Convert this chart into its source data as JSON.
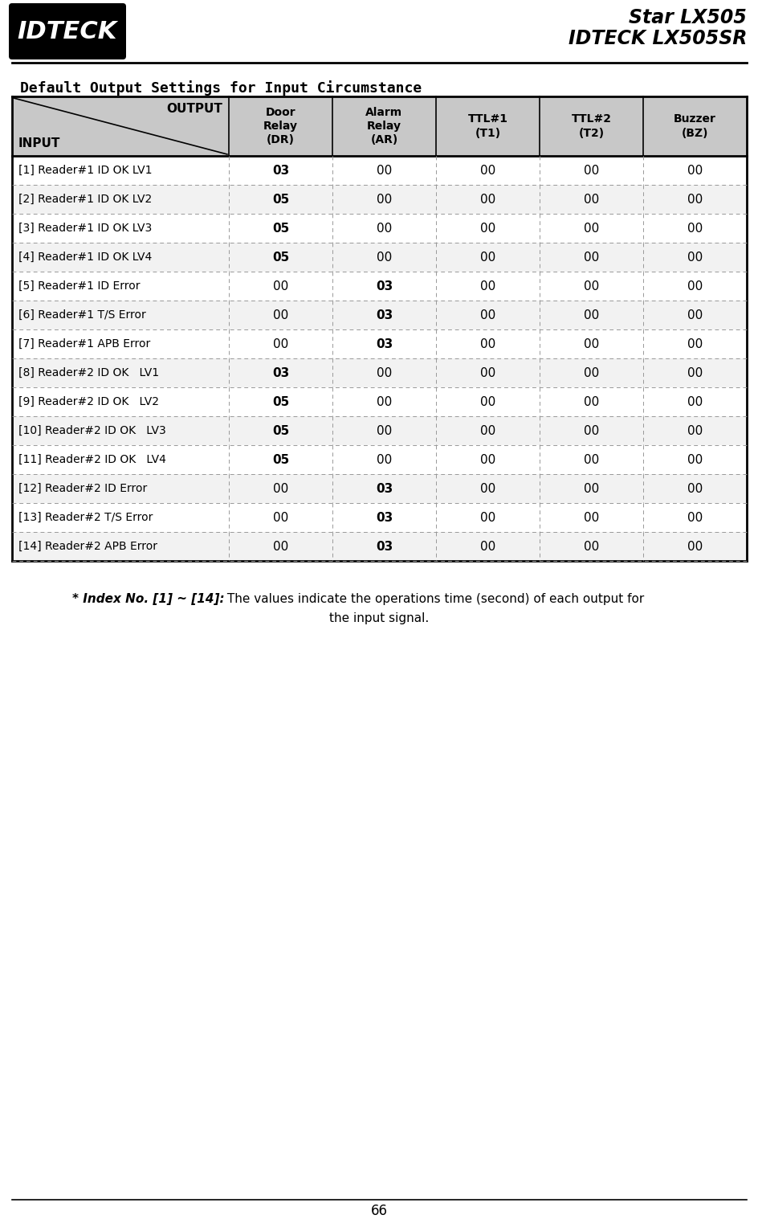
{
  "title": "Default Output Settings for Input Circumstance",
  "page_number": "66",
  "header_bg": "#c8c8c8",
  "row_bg_odd": "#ffffff",
  "row_bg_even": "#f2f2f2",
  "col_headers": [
    "Door\nRelay\n(DR)",
    "Alarm\nRelay\n(AR)",
    "TTL#1\n(T1)",
    "TTL#2\n(T2)",
    "Buzzer\n(BZ)"
  ],
  "rows": [
    {
      "label": "[1] Reader#1 ID OK LV1",
      "dr": "03",
      "ar": "00",
      "t1": "00",
      "t2": "00",
      "bz": "00",
      "dr_bold": true,
      "ar_bold": false
    },
    {
      "label": "[2] Reader#1 ID OK LV2",
      "dr": "05",
      "ar": "00",
      "t1": "00",
      "t2": "00",
      "bz": "00",
      "dr_bold": true,
      "ar_bold": false
    },
    {
      "label": "[3] Reader#1 ID OK LV3",
      "dr": "05",
      "ar": "00",
      "t1": "00",
      "t2": "00",
      "bz": "00",
      "dr_bold": true,
      "ar_bold": false
    },
    {
      "label": "[4] Reader#1 ID OK LV4",
      "dr": "05",
      "ar": "00",
      "t1": "00",
      "t2": "00",
      "bz": "00",
      "dr_bold": true,
      "ar_bold": false
    },
    {
      "label": "[5] Reader#1 ID Error",
      "dr": "00",
      "ar": "03",
      "t1": "00",
      "t2": "00",
      "bz": "00",
      "dr_bold": false,
      "ar_bold": true
    },
    {
      "label": "[6] Reader#1 T/S Error",
      "dr": "00",
      "ar": "03",
      "t1": "00",
      "t2": "00",
      "bz": "00",
      "dr_bold": false,
      "ar_bold": true
    },
    {
      "label": "[7] Reader#1 APB Error",
      "dr": "00",
      "ar": "03",
      "t1": "00",
      "t2": "00",
      "bz": "00",
      "dr_bold": false,
      "ar_bold": true
    },
    {
      "label": "[8] Reader#2 ID OK   LV1",
      "dr": "03",
      "ar": "00",
      "t1": "00",
      "t2": "00",
      "bz": "00",
      "dr_bold": true,
      "ar_bold": false
    },
    {
      "label": "[9] Reader#2 ID OK   LV2",
      "dr": "05",
      "ar": "00",
      "t1": "00",
      "t2": "00",
      "bz": "00",
      "dr_bold": true,
      "ar_bold": false
    },
    {
      "label": "[10] Reader#2 ID OK   LV3",
      "dr": "05",
      "ar": "00",
      "t1": "00",
      "t2": "00",
      "bz": "00",
      "dr_bold": true,
      "ar_bold": false
    },
    {
      "label": "[11] Reader#2 ID OK   LV4",
      "dr": "05",
      "ar": "00",
      "t1": "00",
      "t2": "00",
      "bz": "00",
      "dr_bold": true,
      "ar_bold": false
    },
    {
      "label": "[12] Reader#2 ID Error",
      "dr": "00",
      "ar": "03",
      "t1": "00",
      "t2": "00",
      "bz": "00",
      "dr_bold": false,
      "ar_bold": true
    },
    {
      "label": "[13] Reader#2 T/S Error",
      "dr": "00",
      "ar": "03",
      "t1": "00",
      "t2": "00",
      "bz": "00",
      "dr_bold": false,
      "ar_bold": true
    },
    {
      "label": "[14] Reader#2 APB Error",
      "dr": "00",
      "ar": "03",
      "t1": "00",
      "t2": "00",
      "bz": "00",
      "dr_bold": false,
      "ar_bold": true
    }
  ],
  "note_italic_bold": "* Index No. [1] ~ [14]:",
  "note_normal": " The values indicate the operations time (second) of each output for",
  "note_line2": "the input signal.",
  "logo_text": "IDTECK",
  "product_line1": "Star LX505",
  "product_line2": "IDTECK LX505SR"
}
